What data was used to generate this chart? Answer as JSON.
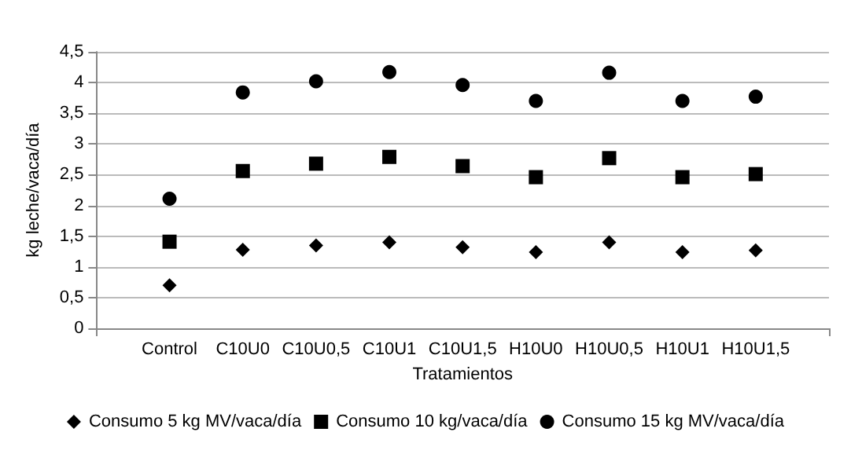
{
  "chart_data": {
    "type": "scatter",
    "xlabel": "Tratamientos",
    "ylabel": "kg leche/vaca/día",
    "categories": [
      "Control",
      "C10U0",
      "C10U0,5",
      "C10U1",
      "C10U1,5",
      "H10U0",
      "H10U0,5",
      "H10U1",
      "H10U1,5"
    ],
    "ylim": [
      0,
      4.5
    ],
    "yticks": [
      0,
      {
        "value": 0.5,
        "label": "0,5"
      },
      1,
      {
        "value": 1.5,
        "label": "1,5"
      },
      2,
      {
        "value": 2.5,
        "label": "2,5"
      },
      3,
      {
        "value": 3.5,
        "label": "3,5"
      },
      4,
      {
        "value": 4.5,
        "label": "4,5"
      }
    ],
    "grid": "y",
    "legend": "bottom",
    "series": [
      {
        "name": "Consumo 5 kg MV/vaca/día",
        "color": "#000000",
        "marker": "diamond",
        "values": [
          0.7,
          1.28,
          1.35,
          1.4,
          1.32,
          1.24,
          1.4,
          1.24,
          1.27
        ]
      },
      {
        "name": "Consumo 10 kg/vaca/día",
        "color": "#000000",
        "marker": "square",
        "values": [
          1.41,
          2.56,
          2.68,
          2.79,
          2.64,
          2.46,
          2.77,
          2.46,
          2.51
        ]
      },
      {
        "name": "Consumo 15 kg MV/vaca/día",
        "color": "#000000",
        "marker": "circle",
        "values": [
          2.11,
          3.84,
          4.02,
          4.17,
          3.96,
          3.7,
          4.16,
          3.7,
          3.77
        ]
      }
    ]
  }
}
